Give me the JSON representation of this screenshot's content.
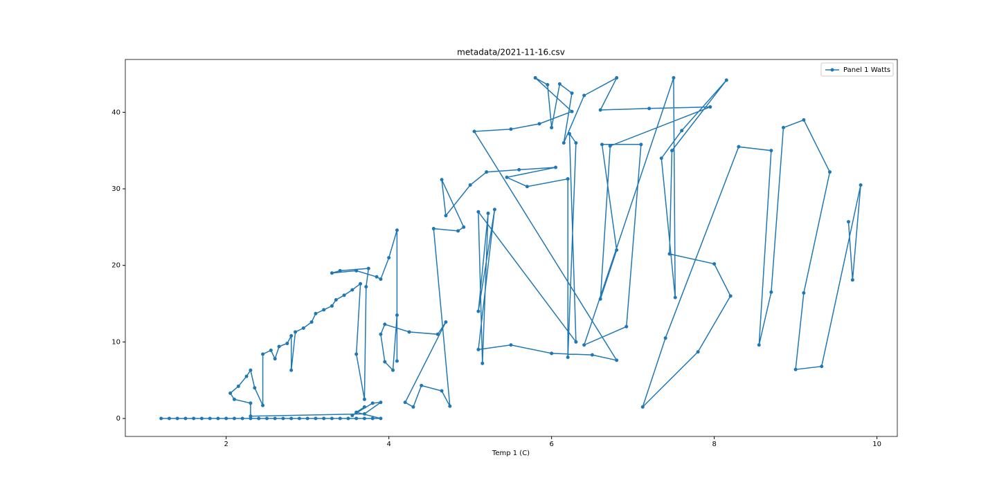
{
  "chart_data": {
    "type": "line",
    "title": "metadata/2021-11-16.csv",
    "xlabel": "Temp 1 (C)",
    "x": [
      1.2,
      1.3,
      1.4,
      1.5,
      1.6,
      1.7,
      1.8,
      1.9,
      2.0,
      2.1,
      2.2,
      2.3,
      2.4,
      2.5,
      2.6,
      2.7,
      2.8,
      2.9,
      3.0,
      3.1,
      3.2,
      3.3,
      3.4,
      3.5,
      3.6,
      3.7,
      3.8,
      3.9,
      3.6,
      3.7,
      3.55,
      3.8,
      3.9,
      3.7,
      2.3,
      2.3,
      2.1,
      2.05,
      2.15,
      2.25,
      2.3,
      2.35,
      2.45,
      2.45,
      2.55,
      2.6,
      2.65,
      2.75,
      2.8,
      2.8,
      2.85,
      2.95,
      3.05,
      3.1,
      3.2,
      3.3,
      3.35,
      3.45,
      3.55,
      3.65,
      3.6,
      3.7,
      3.72,
      3.75,
      3.4,
      3.3,
      3.6,
      3.85,
      3.9,
      4.0,
      4.1,
      4.1,
      4.1,
      4.05,
      3.95,
      3.9,
      3.95,
      4.25,
      4.6,
      4.7,
      4.2,
      4.3,
      4.4,
      4.65,
      4.75,
      4.55,
      4.85,
      4.92,
      4.65,
      4.7,
      5.0,
      5.2,
      5.6,
      6.05,
      5.45,
      5.7,
      6.2,
      6.2,
      6.3,
      6.22,
      6.3,
      5.1,
      5.15,
      5.22,
      5.1,
      5.3,
      5.1,
      5.5,
      6.0,
      6.5,
      6.8,
      5.05,
      5.5,
      5.85,
      6.25,
      5.8,
      5.95,
      6.0,
      6.1,
      6.25,
      6.15,
      6.4,
      6.8,
      6.6,
      7.2,
      7.95,
      6.72,
      6.6,
      6.8,
      6.62,
      7.1,
      6.92,
      6.4,
      7.5,
      7.52,
      7.35,
      7.6,
      8.15,
      7.48,
      7.45,
      8.0,
      8.2,
      7.8,
      7.12,
      7.4,
      8.3,
      8.7,
      8.55,
      8.7,
      8.85,
      9.1,
      9.42,
      9.1,
      9.0,
      9.32,
      9.8,
      9.7,
      9.65
    ],
    "series": [
      {
        "name": "Panel 1 Watts",
        "color": "#1f77b4",
        "values": [
          0,
          0,
          0,
          0,
          0,
          0,
          0,
          0,
          0,
          0,
          0,
          0,
          0,
          0,
          0,
          0,
          0,
          0,
          0,
          0,
          0,
          0,
          0,
          0,
          0,
          0,
          0,
          0,
          0.8,
          1.5,
          0.4,
          2,
          2.1,
          0.6,
          0.3,
          2,
          2.5,
          3.3,
          4.2,
          5.5,
          6.3,
          4,
          1.7,
          8.4,
          8.9,
          7.8,
          9.4,
          9.8,
          10.8,
          6.3,
          11.3,
          11.8,
          12.6,
          13.7,
          14.2,
          14.7,
          15.5,
          16.1,
          16.8,
          17.6,
          8.4,
          2.5,
          17.2,
          19.6,
          19.3,
          19,
          19.3,
          18.5,
          18.2,
          21,
          24.6,
          7.5,
          13.5,
          6.3,
          7.4,
          11,
          12.3,
          11.3,
          11,
          12.6,
          2.1,
          1.5,
          4.3,
          3.6,
          1.6,
          24.8,
          24.5,
          25,
          31.2,
          26.5,
          30.5,
          32.2,
          32.5,
          32.8,
          31.5,
          30.3,
          31.3,
          8,
          36,
          37.2,
          10,
          27,
          7.2,
          26.8,
          14,
          27.3,
          9,
          9.6,
          8.5,
          8.3,
          7.6,
          37.5,
          37.8,
          38.5,
          40.1,
          44.5,
          43.6,
          38,
          43.7,
          42.5,
          36,
          42.2,
          44.5,
          40.3,
          40.5,
          40.7,
          35.6,
          15.6,
          22,
          35.8,
          35.8,
          12,
          9.6,
          44.5,
          15.8,
          34,
          37.6,
          44.2,
          35,
          21.5,
          20.2,
          16,
          8.7,
          1.5,
          10.5,
          35.5,
          35,
          9.6,
          16.5,
          38,
          39,
          32.2,
          16.4,
          6.4,
          6.8,
          30.5,
          18.1,
          25.7
        ]
      }
    ],
    "xlim": [
      0.76,
      10.25
    ],
    "ylim": [
      -2.35,
      46.9
    ],
    "xticks": [
      2,
      4,
      6,
      8,
      10
    ],
    "yticks": [
      0,
      10,
      20,
      30,
      40
    ],
    "grid": false,
    "legend": "upper right",
    "markers": true
  }
}
